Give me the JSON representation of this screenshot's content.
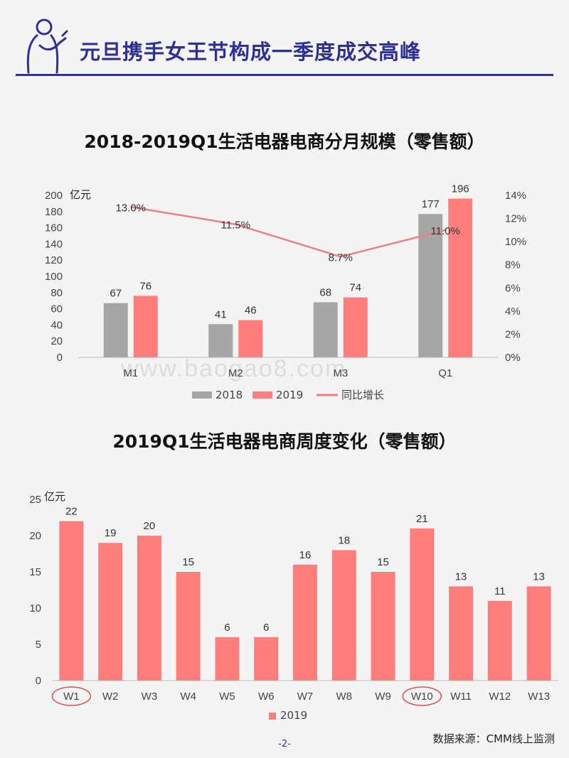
{
  "header": {
    "title": "元旦携手女王节构成一季度成交高峰"
  },
  "watermark": "www.baogao8.com",
  "source": "数据来源：CMM线上监测",
  "page_number": "-2-",
  "colors": {
    "accent": "#2e3192",
    "series_2018": "#a6a6a6",
    "series_2019": "#ff7f7f",
    "line": "#f08080"
  },
  "chart_data": [
    {
      "type": "bar",
      "title": "2018-2019Q1生活电器电商分月规模（零售额）",
      "unit_label": "亿元",
      "categories": [
        "M1",
        "M2",
        "M3",
        "Q1"
      ],
      "series": [
        {
          "name": "2018",
          "values": [
            67,
            41,
            68,
            177
          ]
        },
        {
          "name": "2019",
          "values": [
            76,
            46,
            74,
            196
          ]
        }
      ],
      "line_series": {
        "name": "同比增长",
        "values": [
          13.0,
          11.5,
          8.7,
          11.0
        ],
        "labels": [
          "13.0%",
          "11.5%",
          "8.7%",
          "11.0%"
        ]
      },
      "ylim": [
        0,
        200
      ],
      "y_ticks": [
        0,
        20,
        40,
        60,
        80,
        100,
        120,
        140,
        160,
        180,
        200
      ],
      "y2lim": [
        0,
        14
      ],
      "y2_ticks": [
        "0%",
        "2%",
        "4%",
        "6%",
        "8%",
        "10%",
        "12%",
        "14%"
      ],
      "legend": "bottom"
    },
    {
      "type": "bar",
      "title": "2019Q1生活电器电商周度变化（零售额）",
      "unit_label": "亿元",
      "categories": [
        "W1",
        "W2",
        "W3",
        "W4",
        "W5",
        "W6",
        "W7",
        "W8",
        "W9",
        "W10",
        "W11",
        "W12",
        "W13"
      ],
      "series": [
        {
          "name": "2019",
          "values": [
            22,
            19,
            20,
            15,
            6,
            6,
            16,
            18,
            15,
            21,
            13,
            11,
            13
          ]
        }
      ],
      "highlighted": [
        "W1",
        "W10"
      ],
      "ylim": [
        0,
        25
      ],
      "y_ticks": [
        0,
        5,
        10,
        15,
        20,
        25
      ],
      "legend": "bottom"
    }
  ]
}
